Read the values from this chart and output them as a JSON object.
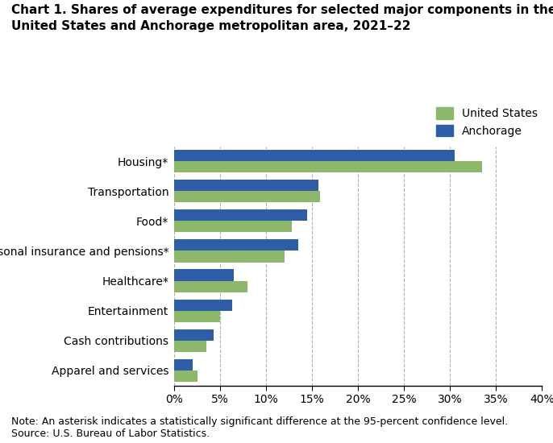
{
  "title_line1": "Chart 1. Shares of average expenditures for selected major components in the",
  "title_line2": "United States and Anchorage metropolitan area, 2021–22",
  "categories": [
    "Housing*",
    "Transportation",
    "Food*",
    "Personal insurance and pensions*",
    "Healthcare*",
    "Entertainment",
    "Cash contributions",
    "Apparel and services"
  ],
  "us_values": [
    33.5,
    15.9,
    12.8,
    12.0,
    8.0,
    5.0,
    3.5,
    2.5
  ],
  "anchorage_values": [
    30.5,
    15.7,
    14.5,
    13.5,
    6.5,
    6.3,
    4.3,
    2.0
  ],
  "us_color": "#8DB86A",
  "anchorage_color": "#2E5EA8",
  "legend_labels": [
    "United States",
    "Anchorage"
  ],
  "xlim": [
    0,
    40
  ],
  "xtick_values": [
    0,
    5,
    10,
    15,
    20,
    25,
    30,
    35,
    40
  ],
  "xtick_labels": [
    "0%",
    "5%",
    "10%",
    "15%",
    "20%",
    "25%",
    "30%",
    "35%",
    "40%"
  ],
  "note": "Note: An asterisk indicates a statistically significant difference at the 95-percent confidence level.\nSource: U.S. Bureau of Labor Statistics.",
  "background_color": "#ffffff",
  "grid_color": "#b0b0b0",
  "bar_height": 0.38,
  "title_fontsize": 11,
  "tick_fontsize": 10,
  "note_fontsize": 9
}
